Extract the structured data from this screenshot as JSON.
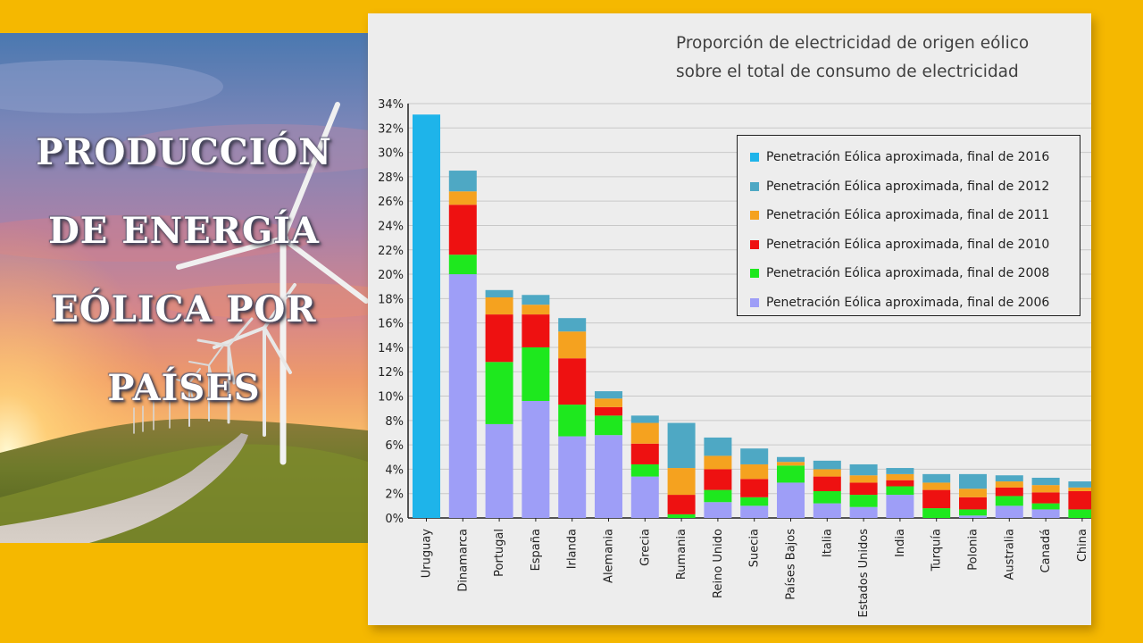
{
  "slide": {
    "title_lines": [
      "PRODUCCIÓN",
      "DE ENERGÍA",
      "EÓLICA POR",
      "PAÍSES"
    ],
    "background_color": "#F5B800"
  },
  "chart_data": {
    "type": "bar",
    "stacked": true,
    "title": "Proporción de electricidad de origen eólico sobre el total de consumo de electricidad",
    "title_lines": [
      "Proporción de electricidad de origen eólico",
      "sobre el total de consumo de electricidad"
    ],
    "xlabel": "",
    "ylabel": "",
    "ylim": [
      0,
      34
    ],
    "ytick_step": 2,
    "ytick_labels": [
      "0%",
      "2%",
      "4%",
      "6%",
      "8%",
      "10%",
      "12%",
      "14%",
      "16%",
      "18%",
      "20%",
      "22%",
      "24%",
      "26%",
      "28%",
      "30%",
      "32%",
      "34%"
    ],
    "grid": true,
    "legend_position": "top-right",
    "categories": [
      "Uruguay",
      "Dinamarca",
      "Portugal",
      "España",
      "Irlanda",
      "Alemania",
      "Grecia",
      "Rumania",
      "Reino Unido",
      "Suecia",
      "Países Bajos",
      "Italia",
      "Estados Unidos",
      "India",
      "Turquía",
      "Polonia",
      "Australia",
      "Canadá",
      "China"
    ],
    "series": [
      {
        "name": "Penetración Eólica aproximada, final de 2006",
        "color": "#9E9EF7",
        "values": [
          0,
          20.0,
          7.7,
          9.6,
          6.7,
          6.8,
          3.4,
          0,
          1.3,
          1.0,
          2.9,
          1.2,
          0.9,
          1.9,
          0,
          0.2,
          1.0,
          0.7,
          0
        ]
      },
      {
        "name": "Penetración Eólica aproximada, final de 2008",
        "color": "#1EE81E",
        "values": [
          0,
          1.6,
          5.1,
          4.4,
          2.6,
          1.6,
          1.0,
          0.3,
          1.0,
          0.7,
          1.4,
          1.0,
          1.0,
          0.7,
          0.8,
          0.5,
          0.8,
          0.5,
          0.7
        ]
      },
      {
        "name": "Penetración Eólica aproximada, final de 2010",
        "color": "#EE1111",
        "values": [
          0,
          4.1,
          3.9,
          2.7,
          3.8,
          0.7,
          1.7,
          1.6,
          1.7,
          1.5,
          0,
          1.2,
          1.0,
          0.5,
          1.5,
          1.0,
          0.7,
          0.9,
          1.5
        ]
      },
      {
        "name": "Penetración Eólica aproximada, final de 2011",
        "color": "#F5A21F",
        "values": [
          0,
          1.1,
          1.4,
          0.8,
          2.2,
          0.7,
          1.7,
          2.2,
          1.1,
          1.2,
          0.3,
          0.6,
          0.6,
          0.5,
          0.6,
          0.7,
          0.5,
          0.6,
          0.3
        ]
      },
      {
        "name": "Penetración Eólica aproximada, final de 2012",
        "color": "#4EA8C4",
        "values": [
          0,
          1.7,
          0.6,
          0.8,
          1.1,
          0.6,
          0.6,
          3.7,
          1.5,
          1.3,
          0.4,
          0.7,
          0.9,
          0.5,
          0.7,
          1.2,
          0.5,
          0.6,
          0.5
        ]
      },
      {
        "name": "Penetración Eólica aproximada, final de 2016",
        "color": "#1EB4EA",
        "values": [
          33.1,
          0,
          0,
          0,
          0,
          0,
          0,
          0,
          0,
          0,
          0,
          0,
          0,
          0,
          0,
          0,
          0,
          0,
          0
        ]
      }
    ],
    "legend_order": [
      5,
      4,
      3,
      2,
      1,
      0
    ]
  }
}
